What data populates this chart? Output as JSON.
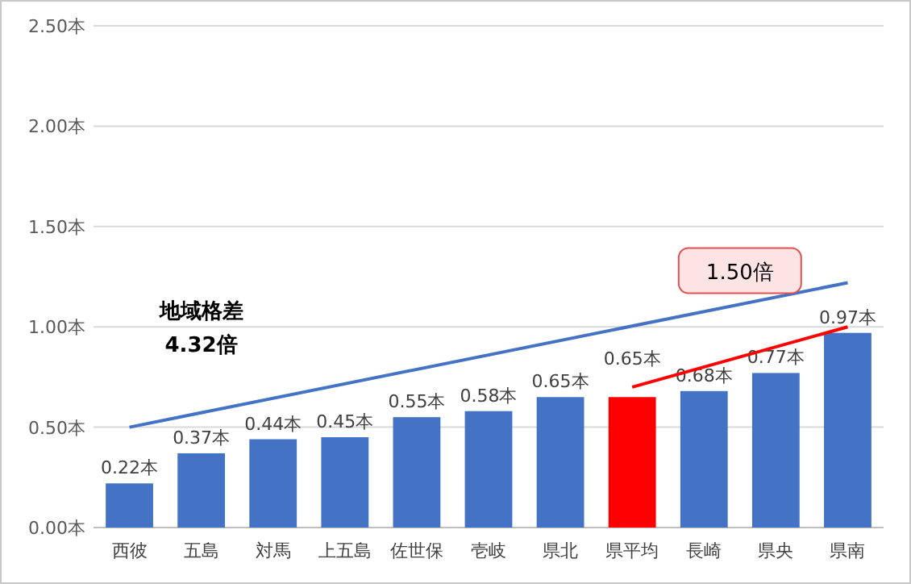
{
  "chart_data": {
    "type": "bar",
    "categories": [
      "西彼",
      "五島",
      "対馬",
      "上五島",
      "佐世保",
      "壱岐",
      "県北",
      "県平均",
      "長崎",
      "県央",
      "県南"
    ],
    "series": [
      {
        "values": [
          0.22,
          0.37,
          0.44,
          0.45,
          0.55,
          0.58,
          0.65,
          0.65,
          0.68,
          0.77,
          0.97
        ],
        "colors": [
          "#4472c4",
          "#4472c4",
          "#4472c4",
          "#4472c4",
          "#4472c4",
          "#4472c4",
          "#4472c4",
          "#ff0000",
          "#4472c4",
          "#4472c4",
          "#4472c4"
        ],
        "value_labels": [
          "0.22本",
          "0.37本",
          "0.44本",
          "0.45本",
          "0.55本",
          "0.58本",
          "0.65本",
          "0.65本",
          "0.68本",
          "0.77本",
          "0.97本"
        ]
      },
      {
        "type": "line",
        "x": [
          "西彼",
          "県南"
        ],
        "values": [
          0.5,
          1.22
        ],
        "color": "#4472c4"
      },
      {
        "type": "line",
        "x": [
          "県平均",
          "県南"
        ],
        "values": [
          0.7,
          1.0
        ],
        "color": "#ff0000"
      }
    ],
    "ylim": [
      0,
      2.5
    ],
    "yticks": [
      {
        "value": 0,
        "label": "0.00本"
      },
      {
        "value": 0.5,
        "label": "0.50本"
      },
      {
        "value": 1,
        "label": "1.00本"
      },
      {
        "value": 1.5,
        "label": "1.50本"
      },
      {
        "value": 2,
        "label": "2.00本"
      },
      {
        "value": 2.5,
        "label": "2.50本"
      }
    ],
    "grid": "y",
    "annotations": [
      "地域格差\n4.32倍",
      "1.50倍"
    ]
  }
}
